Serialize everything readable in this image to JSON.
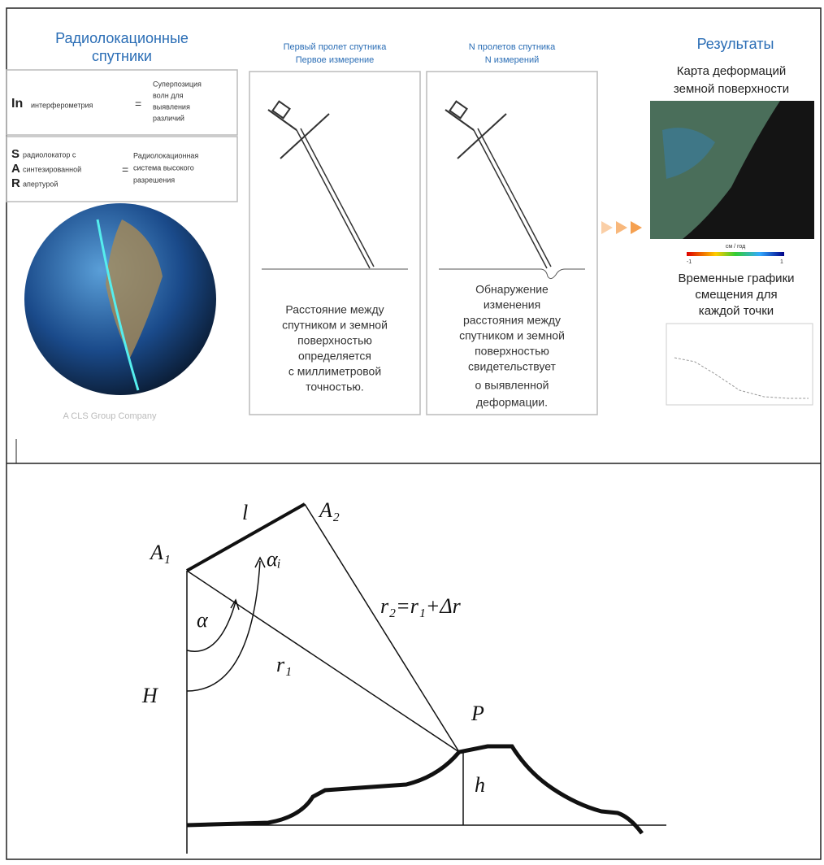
{
  "panel_sar": {
    "title": [
      "Радиолокационные",
      "спутники"
    ],
    "insar": {
      "letter": "In",
      "word": "интерферометрия",
      "equals": "=",
      "meaning": [
        "Суперпозиция",
        "волн для",
        "выявления",
        "различий"
      ]
    },
    "sar": {
      "letters": [
        "S",
        "A",
        "R"
      ],
      "words": [
        "радиолокатор с",
        "синтезированной",
        "апертурой"
      ],
      "equals": "=",
      "meaning": [
        "Радиолокационная",
        "система высокого",
        "разрешения"
      ]
    },
    "credit": "A CLS Group Company"
  },
  "panel_first": {
    "header": [
      "Первый пролет спутника",
      "Первое измерение"
    ],
    "text": [
      "Расстояние между",
      "спутником и земной",
      "поверхностью",
      "определяется",
      "с миллиметровой",
      "точностью."
    ]
  },
  "panel_n": {
    "header": [
      "N пролетов спутника",
      "N измерений"
    ],
    "text": [
      "Обнаружение",
      "изменения",
      "расстояния между",
      "спутником и земной",
      "поверхностью",
      "свидетельствует",
      "о выявленной",
      "деформации."
    ]
  },
  "panel_results": {
    "title": "Результаты",
    "map_title": [
      "Карта деформаций",
      "земной поверхности"
    ],
    "scale_unit": "см / год",
    "scale_min": "-1",
    "scale_max": "1",
    "graph_title": [
      "Временные графики",
      "смещения для",
      "каждой точки"
    ]
  },
  "geometry": {
    "A1": "A₁",
    "A2": "A₂",
    "l": "l",
    "alpha_i": "αᵢ",
    "alpha": "α",
    "r2": "r₂=r₁+Δr",
    "r1": "r₁",
    "H": "H",
    "P": "P",
    "h": "h"
  }
}
